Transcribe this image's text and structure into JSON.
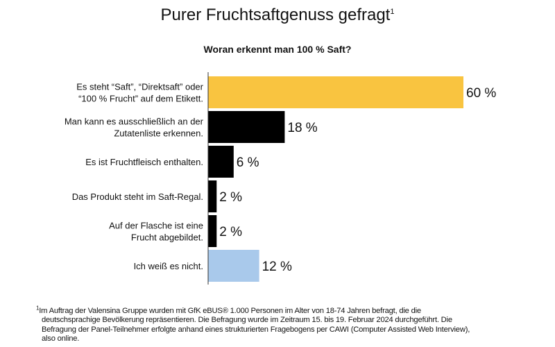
{
  "chart_data": {
    "type": "bar",
    "orientation": "horizontal",
    "title": "Purer Fruchtsaftgenuss gefragt",
    "title_footnote_mark": "1",
    "subtitle": "Woran erkennt man 100 % Saft?",
    "categories": [
      [
        "Es steht “Saft”, “Direktsaft” oder",
        "“100 % Frucht” auf dem Etikett."
      ],
      [
        "Man kann es ausschließlich an der",
        "Zutatenliste erkennen."
      ],
      [
        "Es ist Fruchtfleisch enthalten."
      ],
      [
        "Das Produkt steht im Saft-Regal."
      ],
      [
        "Auf der Flasche ist eine",
        "Frucht abgebildet."
      ],
      [
        "Ich weiß es nicht."
      ]
    ],
    "values": [
      60,
      18,
      6,
      2,
      2,
      12
    ],
    "value_labels": [
      "60 %",
      "18 %",
      "6 %",
      "2 %",
      "2 %",
      "12 %"
    ],
    "colors": [
      "#f9c440",
      "#000000",
      "#000000",
      "#000000",
      "#000000",
      "#a9c9eb"
    ],
    "xlim": [
      0,
      60
    ],
    "grid": false
  },
  "footnote": {
    "mark": "1",
    "lines": [
      "Im Auftrag der Valensina Gruppe wurden mit GfK eBUS® 1.000 Personen im Alter von 18-74 Jahren befragt, die die",
      "deutschsprachige Bevölkerung repräsentieren. Die Befragung wurde im Zeitraum 15. bis 19. Februar 2024 durchgeführt. Die",
      "Befragung der Panel-Teilnehmer erfolgte anhand eines strukturierten Fragebogens per CAWI (Computer Assisted Web Interview),",
      "also online."
    ]
  }
}
